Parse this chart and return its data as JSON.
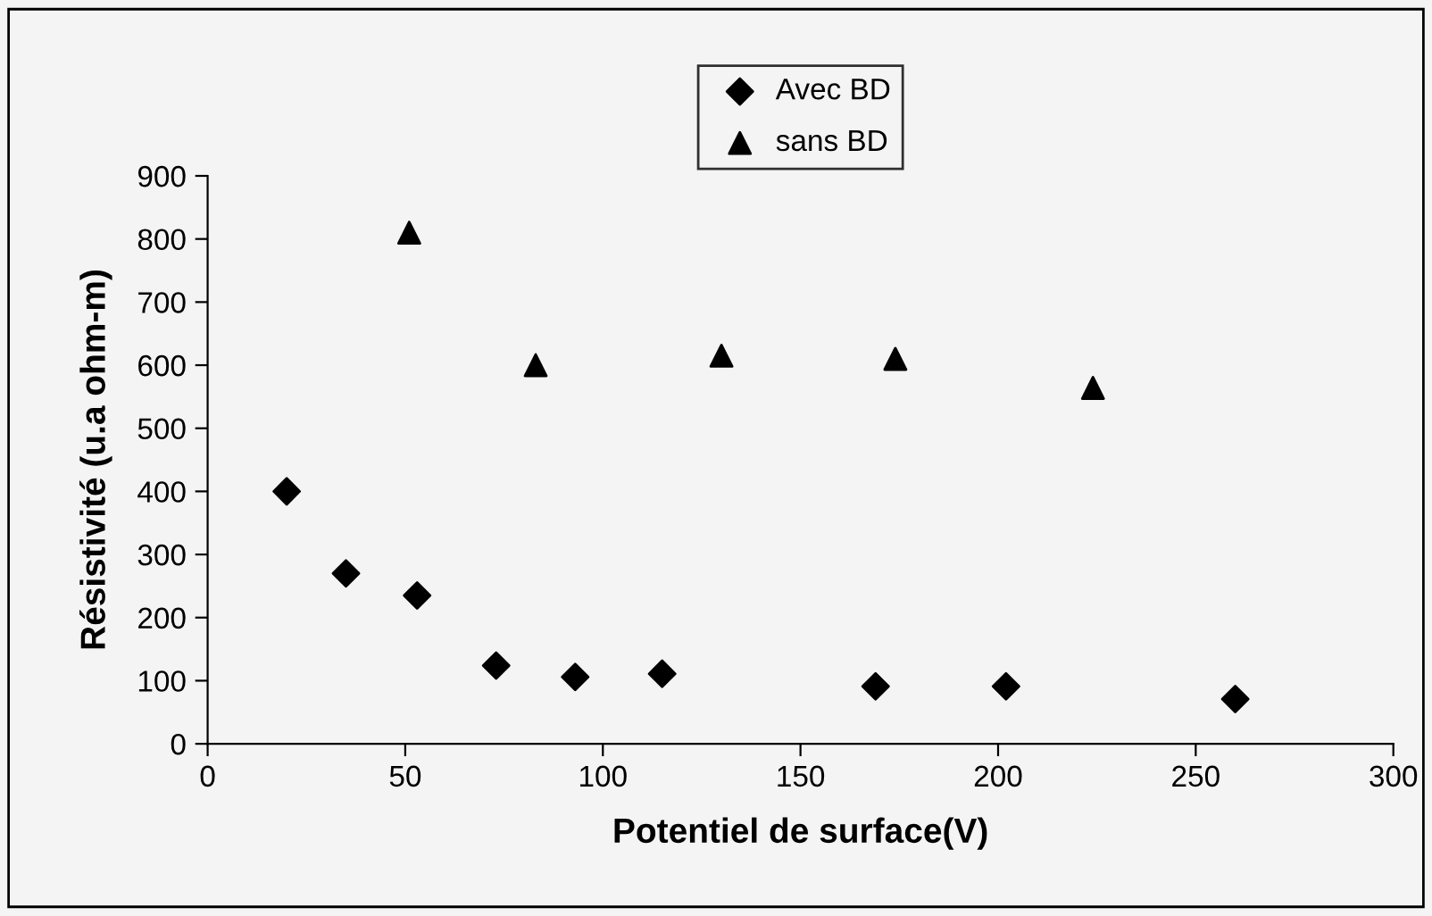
{
  "chart_data": {
    "type": "scatter",
    "xlabel": "Potentiel de surface(V)",
    "ylabel": "Résistivité (u.a ohm-m)",
    "xlim": [
      0,
      300
    ],
    "xticks": [
      0,
      50,
      100,
      150,
      200,
      250,
      300
    ],
    "ylim": [
      0,
      900
    ],
    "yticks": [
      0,
      100,
      200,
      300,
      400,
      500,
      600,
      700,
      800,
      900
    ],
    "grid": false,
    "legend": "top",
    "series": [
      {
        "name": "Avec BD",
        "color": "#000000",
        "marker": "diamond",
        "x": [
          20,
          35,
          53,
          73,
          93,
          115,
          169,
          202,
          260
        ],
        "values": [
          400,
          270,
          235,
          124,
          106,
          111,
          91,
          91,
          71
        ]
      },
      {
        "name": "sans BD",
        "color": "#000000",
        "marker": "triangle",
        "x": [
          51,
          83,
          130,
          174,
          224
        ],
        "values": [
          810,
          600,
          615,
          610,
          564
        ]
      }
    ]
  }
}
